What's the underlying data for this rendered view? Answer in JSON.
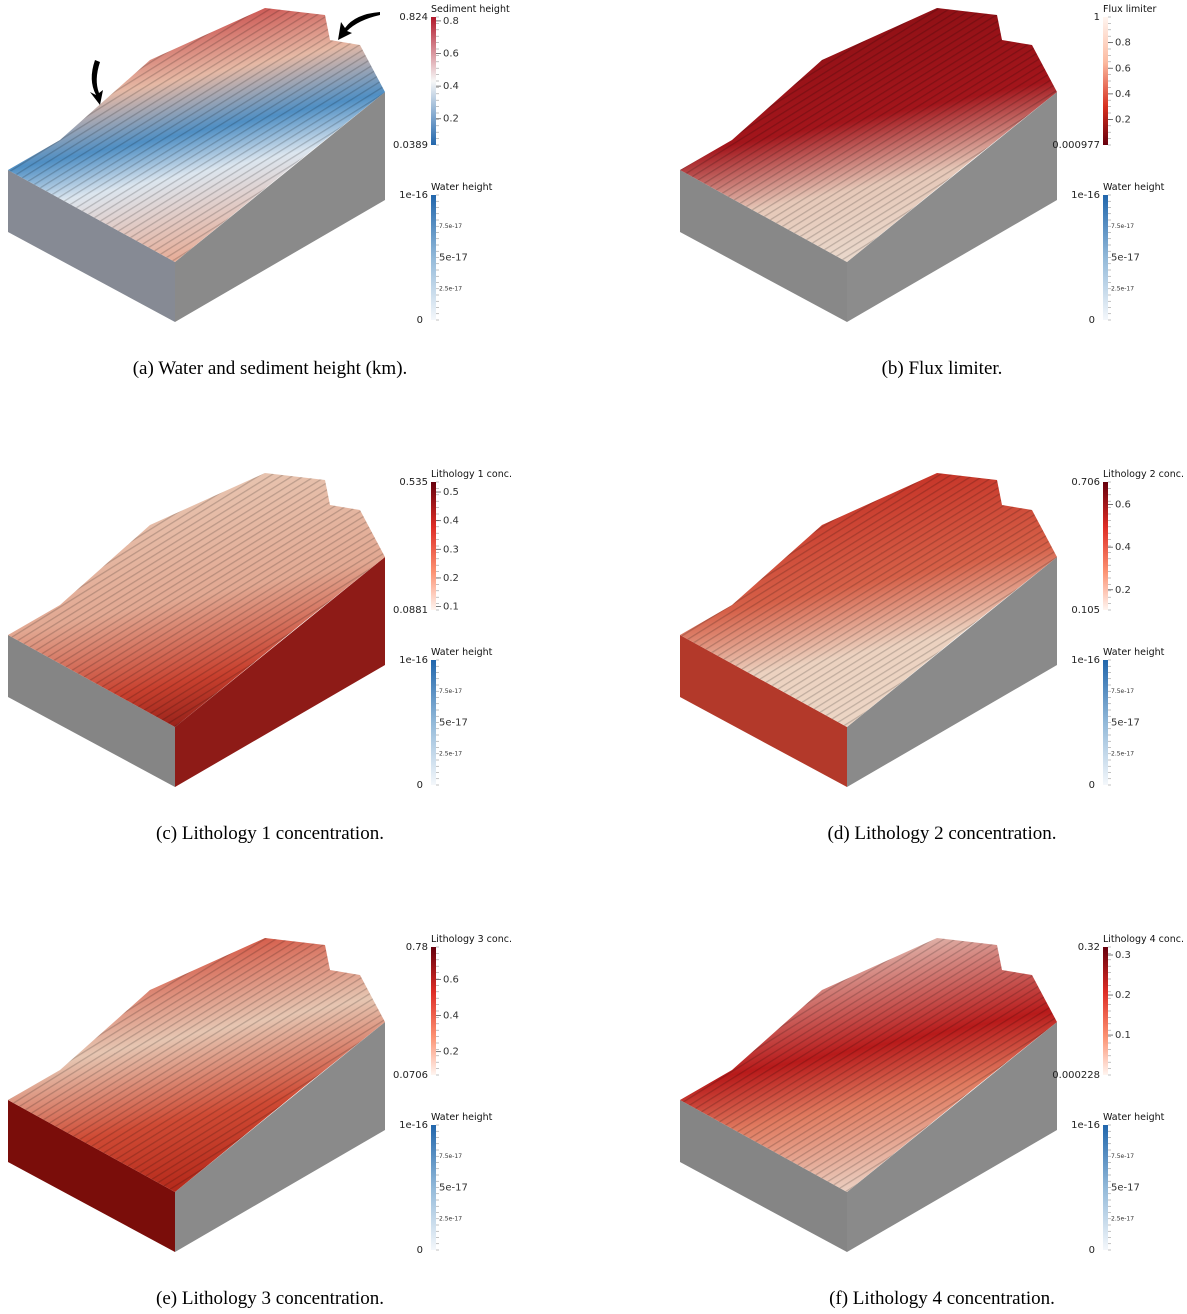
{
  "panels": [
    {
      "caption": "(a) Water and sediment height (km).",
      "colorbar": {
        "title": "Sediment height",
        "max_label": "0.824",
        "min_label": "0.0389",
        "ticks": [
          "0.8",
          "0.6",
          "0.4",
          "0.2"
        ]
      },
      "water": {
        "title": "Water height",
        "max_label": "1e-16",
        "min_label": "0",
        "ticks": [
          "7.5e-17",
          "5e-17",
          "2.5e-17"
        ]
      }
    },
    {
      "caption": "(b) Flux limiter.",
      "colorbar": {
        "title": "Flux limiter",
        "max_label": "1",
        "min_label": "0.000977",
        "ticks": [
          "0.8",
          "0.6",
          "0.4",
          "0.2"
        ]
      },
      "water": {
        "title": "Water height",
        "max_label": "1e-16",
        "min_label": "0",
        "ticks": [
          "7.5e-17",
          "5e-17",
          "2.5e-17"
        ]
      }
    },
    {
      "caption": "(c) Lithology 1 concentration.",
      "colorbar": {
        "title": "Lithology 1 conc.",
        "max_label": "0.535",
        "min_label": "0.0881",
        "ticks": [
          "0.5",
          "0.4",
          "0.3",
          "0.2",
          "0.1"
        ]
      },
      "water": {
        "title": "Water height",
        "max_label": "1e-16",
        "min_label": "0",
        "ticks": [
          "7.5e-17",
          "5e-17",
          "2.5e-17"
        ]
      }
    },
    {
      "caption": "(d) Lithology 2 concentration.",
      "colorbar": {
        "title": "Lithology 2 conc.",
        "max_label": "0.706",
        "min_label": "0.105",
        "ticks": [
          "0.6",
          "0.4",
          "0.2"
        ]
      },
      "water": {
        "title": "Water height",
        "max_label": "1e-16",
        "min_label": "0",
        "ticks": [
          "7.5e-17",
          "5e-17",
          "2.5e-17"
        ]
      }
    },
    {
      "caption": "(e) Lithology 3 concentration.",
      "colorbar": {
        "title": "Lithology 3 conc.",
        "max_label": "0.78",
        "min_label": "0.0706",
        "ticks": [
          "0.6",
          "0.4",
          "0.2"
        ]
      },
      "water": {
        "title": "Water height",
        "max_label": "1e-16",
        "min_label": "0",
        "ticks": [
          "7.5e-17",
          "5e-17",
          "2.5e-17"
        ]
      }
    },
    {
      "caption": "(f) Lithology 4 concentration.",
      "colorbar": {
        "title": "Lithology 4 conc.",
        "max_label": "0.32",
        "min_label": "0.000228",
        "ticks": [
          "0.3",
          "0.2",
          "0.1"
        ]
      },
      "water": {
        "title": "Water height",
        "max_label": "1e-16",
        "min_label": "0",
        "ticks": [
          "7.5e-17",
          "5e-17",
          "2.5e-17"
        ]
      }
    }
  ]
}
